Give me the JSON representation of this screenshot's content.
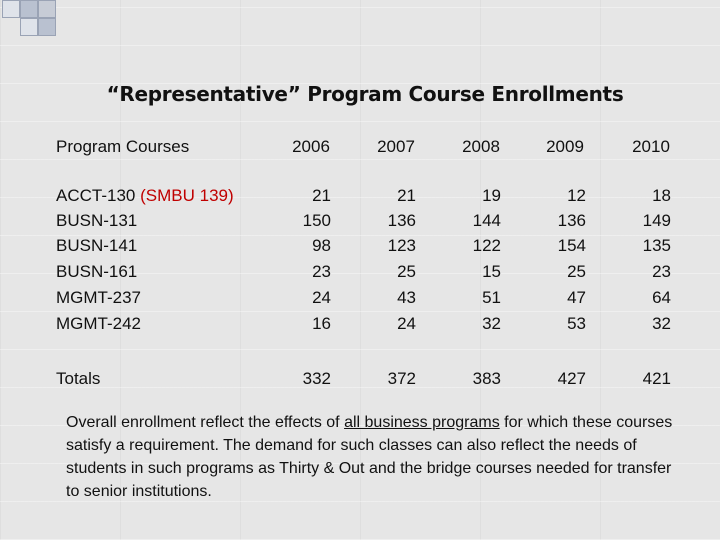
{
  "slide": {
    "title": "“Representative” Program Course Enrollments",
    "table": {
      "label_header": "Program Courses",
      "years": [
        "2006",
        "2007",
        "2008",
        "2009",
        "2010"
      ],
      "rows": [
        {
          "course": "ACCT-130",
          "note": "(SMBU 139)",
          "values": [
            "21",
            "21",
            "19",
            "12",
            "18"
          ]
        },
        {
          "course": "BUSN-131",
          "values": [
            "150",
            "136",
            "144",
            "136",
            "149"
          ]
        },
        {
          "course": "BUSN-141",
          "values": [
            "98",
            "123",
            "122",
            "154",
            "135"
          ]
        },
        {
          "course": "BUSN-161",
          "values": [
            "23",
            "25",
            "15",
            "25",
            "23"
          ]
        },
        {
          "course": "MGMT-237",
          "values": [
            "24",
            "43",
            "51",
            "47",
            "64"
          ]
        },
        {
          "course": "MGMT-242",
          "values": [
            "16",
            "24",
            "32",
            "53",
            "32"
          ]
        }
      ],
      "totals": {
        "label": "Totals",
        "values": [
          "332",
          "372",
          "383",
          "427",
          "421"
        ]
      }
    },
    "note": {
      "part1": "Overall enrollment reflect the effects of ",
      "underlined": "all business programs",
      "part2": " for which these courses satisfy a requirement.  The demand for such classes can also reflect the needs of students in such programs as Thirty & Out and the bridge courses needed for transfer to senior institutions."
    },
    "colors": {
      "highlight": "#c00000",
      "background": "#e6e6e6"
    }
  }
}
